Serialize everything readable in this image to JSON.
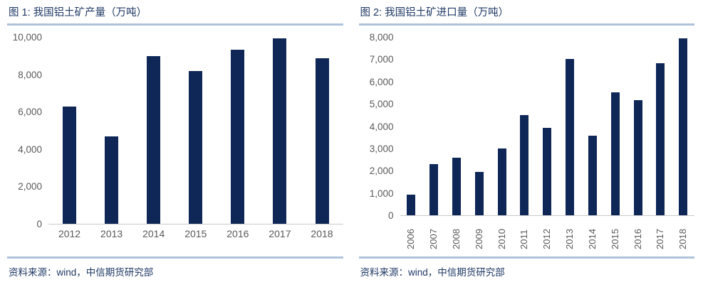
{
  "styles": {
    "bar_color": "#0E2757",
    "title_color": "#1F3864",
    "divider_color": "#AEC3DB",
    "tick_color": "#595959",
    "axis_line_color": "#C9C9C9",
    "background": "#FFFFFF"
  },
  "chart_data": [
    {
      "type": "bar",
      "title": "图 1: 我国铝土矿产量（万吨）",
      "source": "资料来源：wind，中信期货研究部",
      "categories": [
        "2012",
        "2013",
        "2014",
        "2015",
        "2016",
        "2017",
        "2018"
      ],
      "values": [
        6300,
        4700,
        9000,
        8200,
        9350,
        9950,
        8900
      ],
      "xlabel": "",
      "ylabel": "",
      "ylim": [
        0,
        10000
      ],
      "ytick_labels": [
        "0",
        "2,000",
        "4,000",
        "6,000",
        "8,000",
        "10,000"
      ],
      "grid": false,
      "legend": "none",
      "x_label_rotation": 0
    },
    {
      "type": "bar",
      "title": "图 2: 我国铝土矿进口量（万吨）",
      "source": "资料来源：wind，中信期货研究部",
      "categories": [
        "2006",
        "2007",
        "2008",
        "2009",
        "2010",
        "2011",
        "2012",
        "2013",
        "2014",
        "2015",
        "2016",
        "2017",
        "2018"
      ],
      "values": [
        930,
        2300,
        2580,
        1960,
        3000,
        4500,
        3950,
        7050,
        3600,
        5550,
        5200,
        6850,
        7960
      ],
      "xlabel": "",
      "ylabel": "",
      "ylim": [
        0,
        8000
      ],
      "ytick_labels": [
        "0",
        "1,000",
        "2,000",
        "3,000",
        "4,000",
        "5,000",
        "6,000",
        "7,000",
        "8,000"
      ],
      "grid": false,
      "legend": "none",
      "x_label_rotation": 90
    }
  ]
}
